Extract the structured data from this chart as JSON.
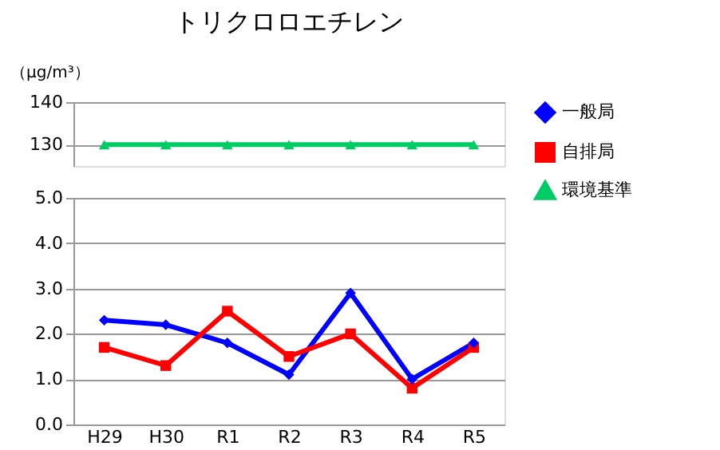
{
  "chart_data": [
    {
      "type": "line",
      "title": "トリクロロエチレン",
      "ylabel": "（μg/m³）",
      "categories": [
        "H29",
        "H30",
        "R1",
        "R2",
        "R3",
        "R4",
        "R5"
      ],
      "ylim": [
        125,
        140
      ],
      "yticks": [
        130,
        140
      ],
      "tick_labels": "y",
      "grid": "y",
      "legend": "right",
      "line_style": "solid",
      "series": [
        {
          "name": "環境基準",
          "color": "#00cc66",
          "marker": "triangle",
          "values": [
            130,
            130,
            130,
            130,
            130,
            130,
            130
          ]
        }
      ]
    },
    {
      "type": "line",
      "categories": [
        "H29",
        "H30",
        "R1",
        "R2",
        "R3",
        "R4",
        "R5"
      ],
      "ylim": [
        0,
        5
      ],
      "yticks": [
        {
          "value": 0,
          "label": "0.0"
        },
        {
          "value": 1,
          "label": "1.0"
        },
        {
          "value": 2,
          "label": "2.0"
        },
        {
          "value": 3,
          "label": "3.0"
        },
        {
          "value": 4,
          "label": "4.0"
        },
        {
          "value": 5,
          "label": "5.0"
        }
      ],
      "grid": "y",
      "legend": "right",
      "line_style": "solid",
      "series": [
        {
          "name": "一般局",
          "color": "#0000ff",
          "marker": "diamond",
          "values": [
            2.3,
            2.2,
            1.8,
            1.1,
            2.9,
            1.0,
            1.8
          ]
        },
        {
          "name": "自排局",
          "color": "#ff0000",
          "marker": "square",
          "values": [
            1.7,
            1.3,
            2.5,
            1.5,
            2.0,
            0.8,
            1.7
          ]
        }
      ]
    }
  ]
}
